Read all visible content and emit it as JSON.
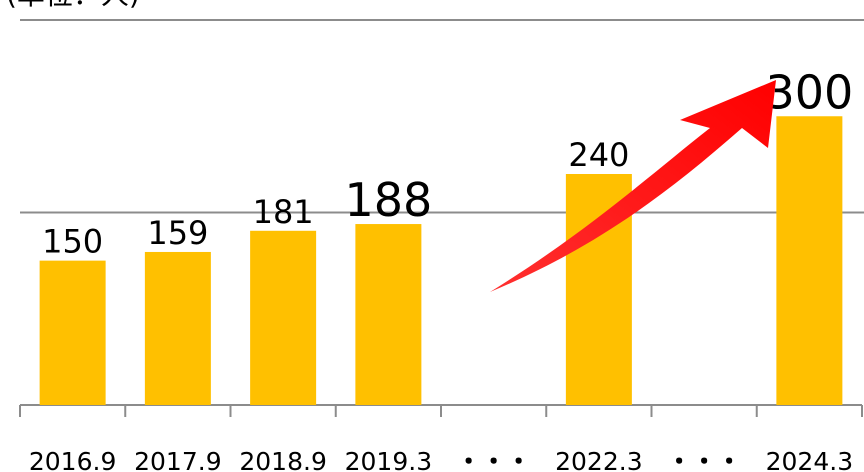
{
  "chart_data": {
    "type": "bar",
    "unit_label": "(単位：人)",
    "categories": [
      "2016.9",
      "2017.9",
      "2018.9",
      "2019.3",
      "・・・",
      "2022.3",
      "・・・",
      "2024.3"
    ],
    "values": [
      150,
      159,
      181,
      188,
      null,
      240,
      null,
      300
    ],
    "color": "#ffc000",
    "highlight_indices": [
      3,
      7
    ],
    "ylim": [
      0,
      400
    ],
    "yticks": [
      200,
      400
    ],
    "grid": true
  }
}
